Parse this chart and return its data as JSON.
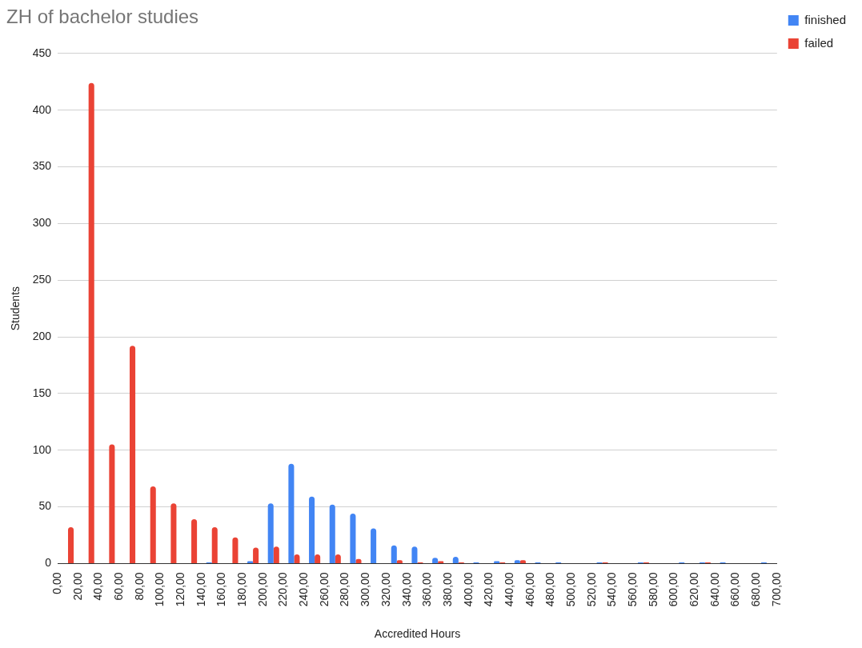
{
  "chart_data": {
    "type": "histogram",
    "title": "ZH of bachelor studies",
    "xlabel": "Accredited Hours",
    "ylabel": "Students",
    "bins": [
      0,
      20,
      40,
      60,
      80,
      100,
      120,
      140,
      160,
      180,
      200,
      220,
      240,
      260,
      280,
      300,
      320,
      340,
      360,
      380,
      400,
      420,
      440,
      460,
      480,
      500,
      520,
      540,
      560,
      580,
      600,
      620,
      640,
      660,
      680,
      700
    ],
    "series": [
      {
        "name": "finished",
        "color": "#4285f4",
        "values": [
          0,
          0,
          0,
          0,
          0,
          0,
          0,
          1,
          0,
          2,
          53,
          88,
          59,
          52,
          44,
          31,
          16,
          15,
          5,
          6,
          1,
          2,
          3,
          1,
          1,
          0,
          1,
          0,
          1,
          0,
          1,
          1,
          1,
          0,
          1
        ]
      },
      {
        "name": "failed",
        "color": "#ea4335",
        "values": [
          32,
          424,
          105,
          192,
          68,
          53,
          39,
          32,
          23,
          14,
          15,
          8,
          8,
          8,
          4,
          0,
          3,
          1,
          2,
          1,
          0,
          1,
          3,
          0,
          0,
          0,
          1,
          0,
          1,
          0,
          0,
          1,
          0,
          0,
          0
        ]
      }
    ],
    "xlim": [
      0,
      700
    ],
    "xticks": [
      {
        "value": 0,
        "label": "0,00"
      },
      {
        "value": 20,
        "label": "20,00"
      },
      {
        "value": 40,
        "label": "40,00"
      },
      {
        "value": 60,
        "label": "60,00"
      },
      {
        "value": 80,
        "label": "80,00"
      },
      {
        "value": 100,
        "label": "100,00"
      },
      {
        "value": 120,
        "label": "120,00"
      },
      {
        "value": 140,
        "label": "140,00"
      },
      {
        "value": 160,
        "label": "160,00"
      },
      {
        "value": 180,
        "label": "180,00"
      },
      {
        "value": 200,
        "label": "200,00"
      },
      {
        "value": 220,
        "label": "220,00"
      },
      {
        "value": 240,
        "label": "240,00"
      },
      {
        "value": 260,
        "label": "260,00"
      },
      {
        "value": 280,
        "label": "280,00"
      },
      {
        "value": 300,
        "label": "300,00"
      },
      {
        "value": 320,
        "label": "320,00"
      },
      {
        "value": 340,
        "label": "340,00"
      },
      {
        "value": 360,
        "label": "360,00"
      },
      {
        "value": 380,
        "label": "380,00"
      },
      {
        "value": 400,
        "label": "400,00"
      },
      {
        "value": 420,
        "label": "420,00"
      },
      {
        "value": 440,
        "label": "440,00"
      },
      {
        "value": 460,
        "label": "460,00"
      },
      {
        "value": 480,
        "label": "480,00"
      },
      {
        "value": 500,
        "label": "500,00"
      },
      {
        "value": 520,
        "label": "520,00"
      },
      {
        "value": 540,
        "label": "540,00"
      },
      {
        "value": 560,
        "label": "560,00"
      },
      {
        "value": 580,
        "label": "580,00"
      },
      {
        "value": 600,
        "label": "600,00"
      },
      {
        "value": 620,
        "label": "620,00"
      },
      {
        "value": 640,
        "label": "640,00"
      },
      {
        "value": 660,
        "label": "660,00"
      },
      {
        "value": 680,
        "label": "680,00"
      },
      {
        "value": 700,
        "label": "700,00"
      }
    ],
    "ylim": [
      0,
      450
    ],
    "yticks": [
      0,
      50,
      100,
      150,
      200,
      250,
      300,
      350,
      400,
      450
    ],
    "grid": "y",
    "legend": "top right"
  }
}
